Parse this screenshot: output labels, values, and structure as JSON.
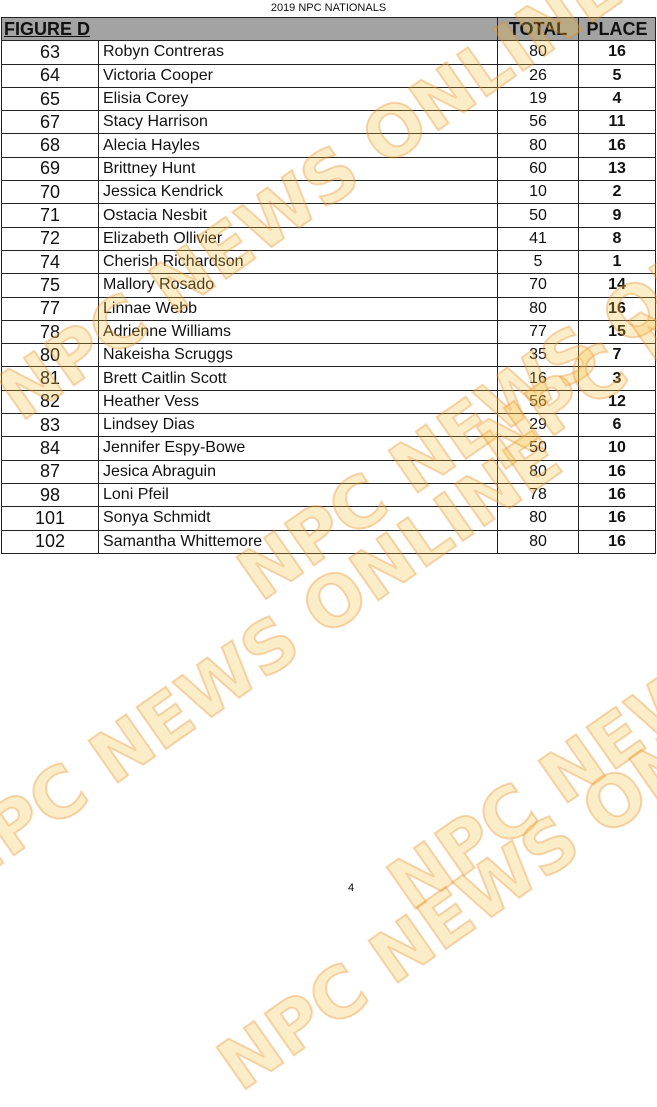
{
  "document_title": "2019 NPC NATIONALS",
  "table": {
    "title": "FIGURE D",
    "headers": {
      "total": "TOTAL",
      "place": "PLACE"
    },
    "rows": [
      {
        "number": "63",
        "name": "Robyn Contreras",
        "total": "80",
        "place": "16"
      },
      {
        "number": "64",
        "name": "Victoria  Cooper",
        "total": "26",
        "place": "5"
      },
      {
        "number": "65",
        "name": "Elisia Corey",
        "total": "19",
        "place": "4"
      },
      {
        "number": "67",
        "name": "Stacy Harrison",
        "total": "56",
        "place": "11"
      },
      {
        "number": "68",
        "name": "Alecia  Hayles",
        "total": "80",
        "place": "16"
      },
      {
        "number": "69",
        "name": "Brittney  Hunt",
        "total": "60",
        "place": "13"
      },
      {
        "number": "70",
        "name": "Jessica Kendrick",
        "total": "10",
        "place": "2"
      },
      {
        "number": "71",
        "name": "Ostacia Nesbit",
        "total": "50",
        "place": "9"
      },
      {
        "number": "72",
        "name": "Elizabeth Ollivier",
        "total": "41",
        "place": "8"
      },
      {
        "number": "74",
        "name": "Cherish  Richardson",
        "total": "5",
        "place": "1"
      },
      {
        "number": "75",
        "name": "Mallory Rosado",
        "total": "70",
        "place": "14"
      },
      {
        "number": "77",
        "name": "Linnae  Webb",
        "total": "80",
        "place": "16"
      },
      {
        "number": "78",
        "name": "Adrienne Williams",
        "total": "77",
        "place": "15"
      },
      {
        "number": "80",
        "name": "Nakeisha Scruggs",
        "total": "35",
        "place": "7"
      },
      {
        "number": "81",
        "name": "Brett Caitlin Scott",
        "total": "16",
        "place": "3"
      },
      {
        "number": "82",
        "name": "Heather Vess",
        "total": "56",
        "place": "12"
      },
      {
        "number": "83",
        "name": "Lindsey Dias",
        "total": "29",
        "place": "6"
      },
      {
        "number": "84",
        "name": "Jennifer Espy-Bowe",
        "total": "50",
        "place": "10"
      },
      {
        "number": "87",
        "name": "Jesica Abraguin",
        "total": "80",
        "place": "16"
      },
      {
        "number": "98",
        "name": "Loni Pfeil",
        "total": "78",
        "place": "16"
      },
      {
        "number": "101",
        "name": "Sonya Schmidt",
        "total": "80",
        "place": "16"
      },
      {
        "number": "102",
        "name": "Samantha Whittemore",
        "total": "80",
        "place": "16"
      }
    ]
  },
  "page_number": "4",
  "watermark": "NPC NEWS ONLINE",
  "colors": {
    "header_bg": "#a3a3a3",
    "watermark": "#f5be3c"
  }
}
